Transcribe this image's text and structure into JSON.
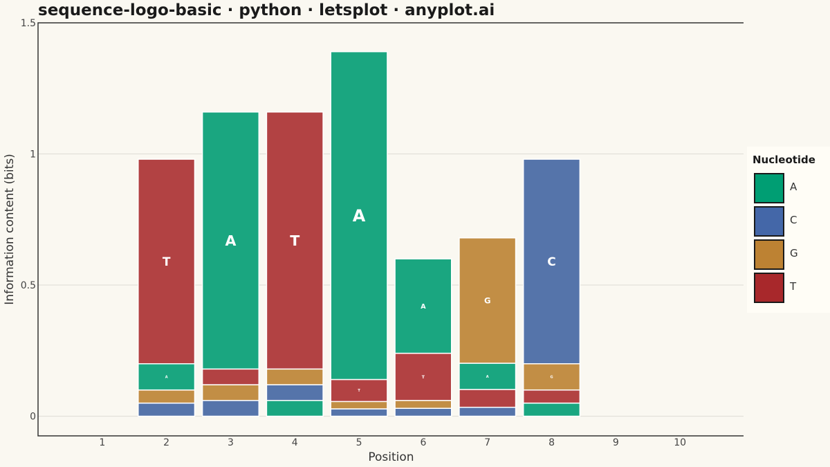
{
  "chart_data": {
    "type": "bar",
    "stacked": true,
    "title": "sequence-logo-basic · python · letsplot · anyplot.ai",
    "xlabel": "Position",
    "ylabel": "Information content (bits)",
    "x_ticks": [
      "1",
      "2",
      "3",
      "4",
      "5",
      "6",
      "7",
      "8",
      "9",
      "10"
    ],
    "y_ticks": [
      "0",
      "0.5",
      "1",
      "1.5"
    ],
    "y_tick_values": [
      0,
      0.5,
      1,
      1.5
    ],
    "xlim": [
      0,
      11
    ],
    "ylim": [
      -0.075,
      1.5
    ],
    "grid": "horizontal",
    "legend_position": "right",
    "legend": {
      "title": "Nucleotide",
      "items": [
        {
          "label": "A",
          "color": "#009E73"
        },
        {
          "label": "C",
          "color": "#4467A8"
        },
        {
          "label": "G",
          "color": "#BD8233"
        },
        {
          "label": "T",
          "color": "#A8282B"
        }
      ]
    },
    "stack_fill_colors": {
      "A": "#1AA680",
      "C": "#5574AA",
      "G": "#C28E45",
      "T": "#B24243"
    },
    "positions": [
      {
        "x": 2,
        "stack": [
          {
            "nt": "C",
            "value": 0.05
          },
          {
            "nt": "G",
            "value": 0.05
          },
          {
            "nt": "A",
            "value": 0.1,
            "label": "A"
          },
          {
            "nt": "T",
            "value": 0.78,
            "label": "T"
          }
        ]
      },
      {
        "x": 3,
        "stack": [
          {
            "nt": "C",
            "value": 0.06
          },
          {
            "nt": "G",
            "value": 0.06
          },
          {
            "nt": "T",
            "value": 0.06
          },
          {
            "nt": "A",
            "value": 0.98,
            "label": "A"
          }
        ]
      },
      {
        "x": 4,
        "stack": [
          {
            "nt": "A",
            "value": 0.06
          },
          {
            "nt": "C",
            "value": 0.06
          },
          {
            "nt": "G",
            "value": 0.06
          },
          {
            "nt": "T",
            "value": 0.98,
            "label": "T"
          }
        ]
      },
      {
        "x": 5,
        "stack": [
          {
            "nt": "C",
            "value": 0.028
          },
          {
            "nt": "G",
            "value": 0.028
          },
          {
            "nt": "T",
            "value": 0.084,
            "label": "T"
          },
          {
            "nt": "A",
            "value": 1.25,
            "label": "A"
          }
        ]
      },
      {
        "x": 6,
        "stack": [
          {
            "nt": "C",
            "value": 0.03
          },
          {
            "nt": "G",
            "value": 0.03
          },
          {
            "nt": "T",
            "value": 0.18,
            "label": "T"
          },
          {
            "nt": "A",
            "value": 0.36,
            "label": "A"
          }
        ]
      },
      {
        "x": 7,
        "stack": [
          {
            "nt": "C",
            "value": 0.034
          },
          {
            "nt": "T",
            "value": 0.068
          },
          {
            "nt": "A",
            "value": 0.1,
            "label": "A"
          },
          {
            "nt": "G",
            "value": 0.478,
            "label": "G"
          }
        ]
      },
      {
        "x": 8,
        "stack": [
          {
            "nt": "A",
            "value": 0.05
          },
          {
            "nt": "T",
            "value": 0.05
          },
          {
            "nt": "G",
            "value": 0.1,
            "label": "G"
          },
          {
            "nt": "C",
            "value": 0.78,
            "label": "C"
          }
        ]
      }
    ]
  }
}
